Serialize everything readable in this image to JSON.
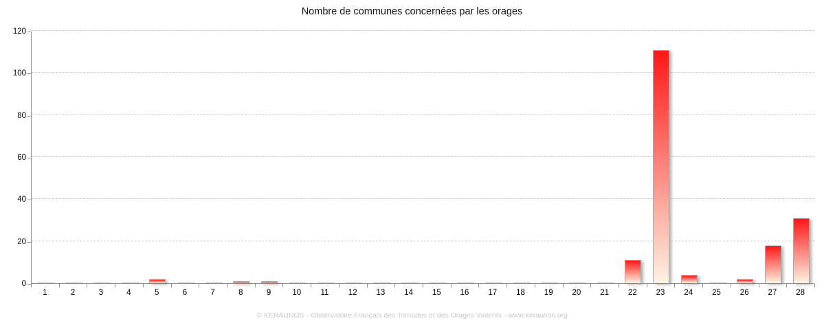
{
  "chart_data": {
    "type": "bar",
    "title": "Nombre de communes concernées par les orages",
    "categories": [
      1,
      2,
      3,
      4,
      5,
      6,
      7,
      8,
      9,
      10,
      11,
      12,
      13,
      14,
      15,
      16,
      17,
      18,
      19,
      20,
      21,
      22,
      23,
      24,
      25,
      26,
      27,
      28
    ],
    "values": [
      0,
      0,
      0,
      0,
      2,
      0,
      0,
      1,
      1,
      0,
      0,
      0,
      0,
      0,
      0,
      0,
      0,
      0,
      0,
      0,
      0,
      11,
      111,
      4,
      0,
      2,
      18,
      31
    ],
    "xlabel": "",
    "ylabel": "",
    "ylim": [
      0,
      120
    ],
    "yticks": [
      0,
      20,
      40,
      60,
      80,
      100,
      120
    ],
    "grid": "horizontal-dashed",
    "legend": "none",
    "colors": {
      "bar_top": "#fe1717",
      "bar_bottom": "#fdf3e1",
      "bar_border": "#a9a9a9",
      "gridline": "#c9c9c9",
      "axis": "#8f8f8f"
    }
  },
  "footer": {
    "credit": "© KERAUNOS - Observatoire Français des Tornades et des Orages Violents - www.keraunos.org"
  }
}
